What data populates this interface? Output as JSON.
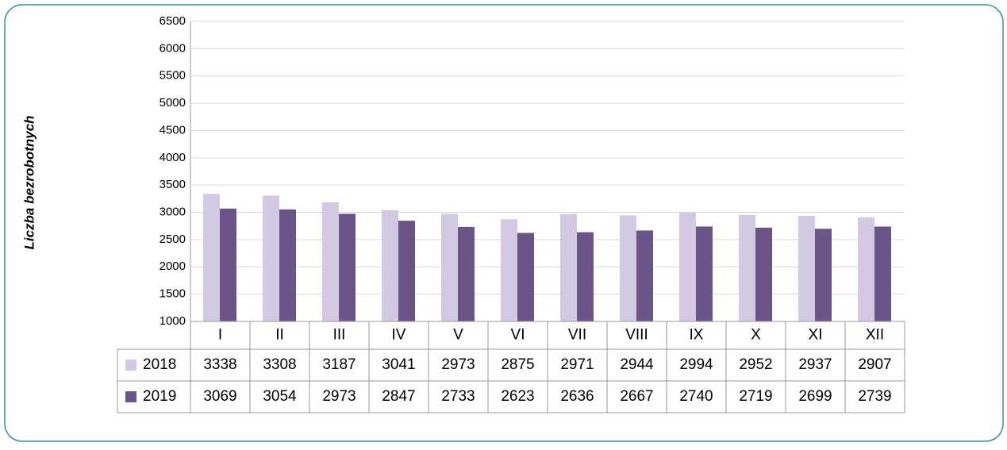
{
  "chart_data": {
    "type": "bar",
    "y_label": "Liczba bezrobotnych",
    "categories": [
      "I",
      "II",
      "III",
      "IV",
      "V",
      "VI",
      "VII",
      "VIII",
      "IX",
      "X",
      "XI",
      "XII"
    ],
    "series": [
      {
        "name": "2018",
        "color": "#d4c9e3",
        "values": [
          3338,
          3308,
          3187,
          3041,
          2973,
          2875,
          2971,
          2944,
          2994,
          2952,
          2937,
          2907
        ]
      },
      {
        "name": "2019",
        "color": "#6b5487",
        "values": [
          3069,
          3054,
          2973,
          2847,
          2733,
          2623,
          2636,
          2667,
          2740,
          2719,
          2699,
          2739
        ]
      }
    ],
    "ylim": [
      1000,
      6500
    ],
    "yticks": [
      1000,
      1500,
      2000,
      2500,
      3000,
      3500,
      4000,
      4500,
      5000,
      5500,
      6000,
      6500
    ],
    "grid": true
  }
}
